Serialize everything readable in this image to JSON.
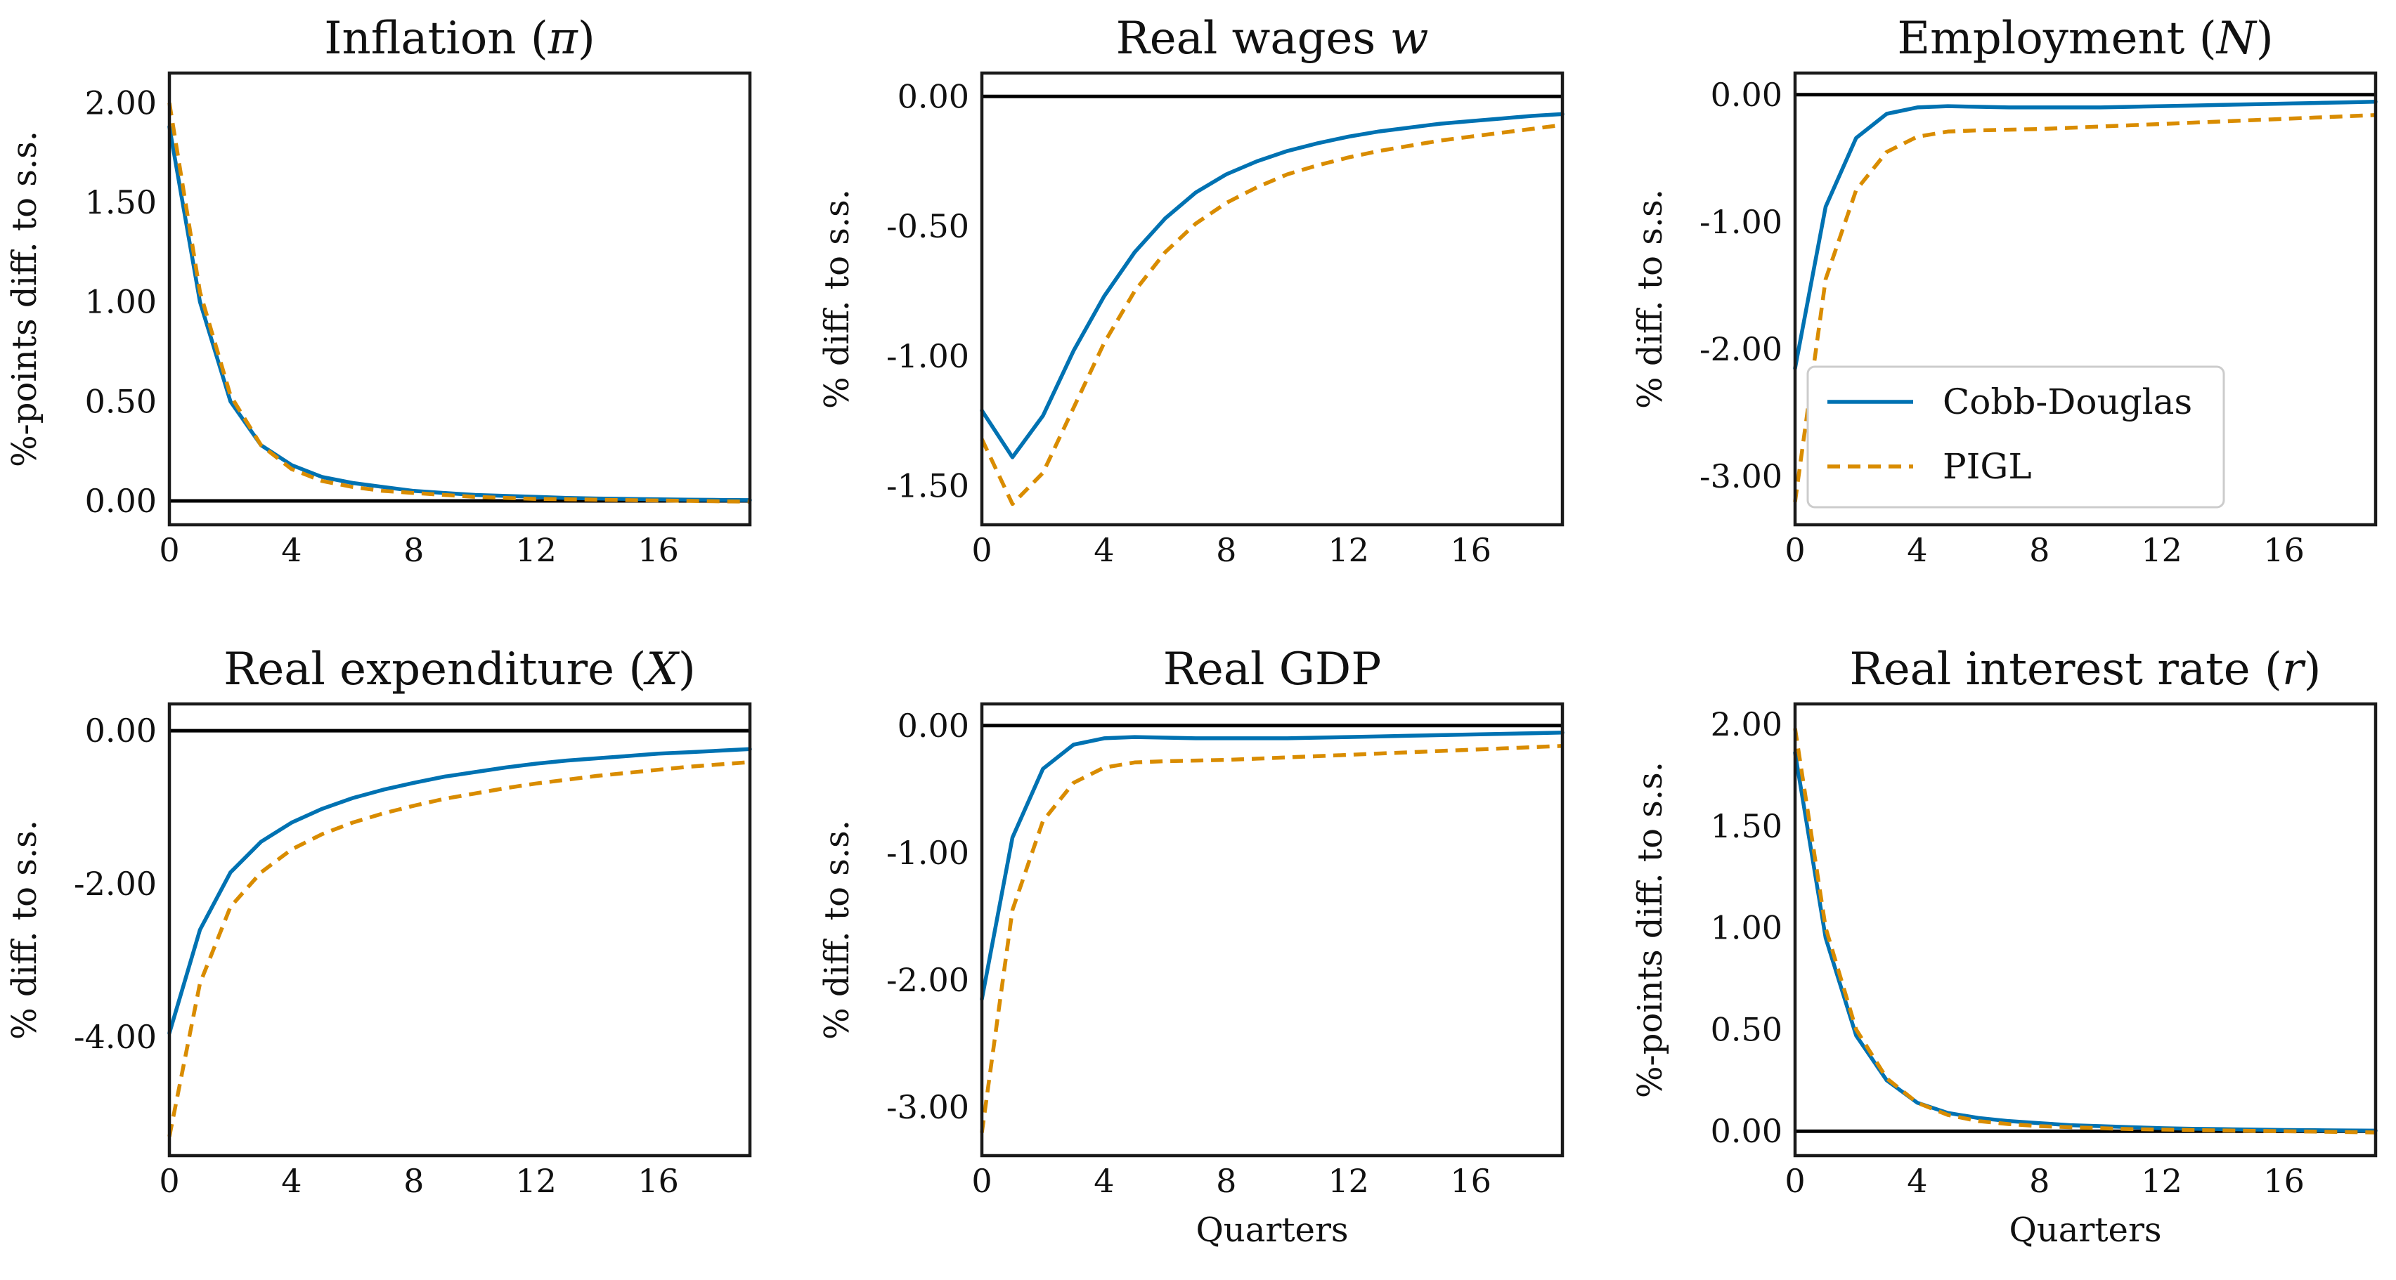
{
  "colors": {
    "cobb": "#0072b2",
    "pigl": "#d98c00",
    "zero": "#000000",
    "frame": "#1a1a1a"
  },
  "legend": {
    "placement": "lower-right",
    "panel": 2,
    "entries": [
      {
        "label": "Cobb-Douglas",
        "style": "solid",
        "color": "#0072b2"
      },
      {
        "label": "PIGL",
        "style": "dashed",
        "color": "#d98c00"
      }
    ]
  },
  "chart_data": [
    {
      "type": "line",
      "title": "Inflation (π)",
      "title_main": "Inflation (",
      "title_sym": "π",
      "title_end": ")",
      "xlabel": "",
      "ylabel": "%-points diff. to s.s.",
      "xlim": [
        0,
        19
      ],
      "ylim": [
        -0.12,
        2.15
      ],
      "xticks": [
        0,
        4,
        8,
        12,
        16
      ],
      "xtick_labels": [
        "0",
        "4",
        "8",
        "12",
        "16"
      ],
      "yticks": [
        0,
        0.5,
        1,
        1.5,
        2
      ],
      "ytick_labels": [
        "0.00",
        "0.50",
        "1.00",
        "1.50",
        "2.00"
      ],
      "x": [
        0,
        1,
        2,
        3,
        4,
        5,
        6,
        7,
        8,
        9,
        10,
        11,
        12,
        13,
        14,
        15,
        16,
        17,
        18,
        19
      ],
      "series": [
        {
          "name": "Cobb-Douglas",
          "values": [
            1.88,
            1.0,
            0.5,
            0.28,
            0.18,
            0.12,
            0.09,
            0.07,
            0.05,
            0.04,
            0.03,
            0.025,
            0.02,
            0.015,
            0.012,
            0.01,
            0.008,
            0.006,
            0.005,
            0.004
          ]
        },
        {
          "name": "PIGL",
          "values": [
            2.0,
            1.05,
            0.53,
            0.28,
            0.16,
            0.1,
            0.07,
            0.05,
            0.04,
            0.03,
            0.02,
            0.015,
            0.01,
            0.008,
            0.006,
            0.004,
            0.002,
            0.0,
            -0.002,
            -0.004
          ]
        }
      ]
    },
    {
      "type": "line",
      "title": "Real wages w",
      "title_main": "Real wages ",
      "title_sym": "w",
      "title_end": "",
      "xlabel": "",
      "ylabel": "% diff. to s.s.",
      "xlim": [
        0,
        19
      ],
      "ylim": [
        -1.65,
        0.09
      ],
      "xticks": [
        0,
        4,
        8,
        12,
        16
      ],
      "xtick_labels": [
        "0",
        "4",
        "8",
        "12",
        "16"
      ],
      "yticks": [
        0,
        -0.5,
        -1,
        -1.5
      ],
      "ytick_labels": [
        "0.00",
        "-0.50",
        "-1.00",
        "-1.50"
      ],
      "x": [
        0,
        1,
        2,
        3,
        4,
        5,
        6,
        7,
        8,
        9,
        10,
        11,
        12,
        13,
        14,
        15,
        16,
        17,
        18,
        19
      ],
      "series": [
        {
          "name": "Cobb-Douglas",
          "values": [
            -1.21,
            -1.39,
            -1.23,
            -0.98,
            -0.77,
            -0.6,
            -0.47,
            -0.37,
            -0.3,
            -0.25,
            -0.21,
            -0.18,
            -0.155,
            -0.135,
            -0.12,
            -0.105,
            -0.095,
            -0.085,
            -0.075,
            -0.068
          ]
        },
        {
          "name": "PIGL",
          "values": [
            -1.32,
            -1.57,
            -1.45,
            -1.2,
            -0.95,
            -0.75,
            -0.6,
            -0.49,
            -0.41,
            -0.35,
            -0.3,
            -0.265,
            -0.235,
            -0.21,
            -0.19,
            -0.17,
            -0.155,
            -0.14,
            -0.125,
            -0.11
          ]
        }
      ]
    },
    {
      "type": "line",
      "title": "Employment (N)",
      "title_main": "Employment (",
      "title_sym": "N",
      "title_end": ")",
      "xlabel": "",
      "ylabel": "% diff. to s.s.",
      "xlim": [
        0,
        19
      ],
      "ylim": [
        -3.38,
        0.17
      ],
      "xticks": [
        0,
        4,
        8,
        12,
        16
      ],
      "xtick_labels": [
        "0",
        "4",
        "8",
        "12",
        "16"
      ],
      "yticks": [
        0,
        -1,
        -2,
        -3
      ],
      "ytick_labels": [
        "0.00",
        "-1.00",
        "-2.00",
        "-3.00"
      ],
      "x": [
        0,
        1,
        2,
        3,
        4,
        5,
        6,
        7,
        8,
        9,
        10,
        11,
        12,
        13,
        14,
        15,
        16,
        17,
        18,
        19
      ],
      "series": [
        {
          "name": "Cobb-Douglas",
          "values": [
            -2.15,
            -0.88,
            -0.34,
            -0.15,
            -0.1,
            -0.09,
            -0.095,
            -0.1,
            -0.1,
            -0.1,
            -0.1,
            -0.095,
            -0.09,
            -0.085,
            -0.08,
            -0.075,
            -0.07,
            -0.065,
            -0.06,
            -0.055
          ]
        },
        {
          "name": "PIGL",
          "values": [
            -3.2,
            -1.45,
            -0.75,
            -0.45,
            -0.33,
            -0.29,
            -0.28,
            -0.275,
            -0.27,
            -0.26,
            -0.25,
            -0.24,
            -0.23,
            -0.22,
            -0.21,
            -0.2,
            -0.19,
            -0.18,
            -0.17,
            -0.16
          ]
        }
      ]
    },
    {
      "type": "line",
      "title": "Real expenditure (X)",
      "title_main": "Real expenditure (",
      "title_sym": "X",
      "title_end": ")",
      "xlabel": "",
      "ylabel": "% diff. to s.s.",
      "xlim": [
        0,
        19
      ],
      "ylim": [
        -5.55,
        0.35
      ],
      "xticks": [
        0,
        4,
        8,
        12,
        16
      ],
      "xtick_labels": [
        "0",
        "4",
        "8",
        "12",
        "16"
      ],
      "yticks": [
        0,
        -2,
        -4
      ],
      "ytick_labels": [
        "0.00",
        "-2.00",
        "-4.00"
      ],
      "x": [
        0,
        1,
        2,
        3,
        4,
        5,
        6,
        7,
        8,
        9,
        10,
        11,
        12,
        13,
        14,
        15,
        16,
        17,
        18,
        19
      ],
      "series": [
        {
          "name": "Cobb-Douglas",
          "values": [
            -3.95,
            -2.6,
            -1.85,
            -1.45,
            -1.2,
            -1.02,
            -0.88,
            -0.77,
            -0.68,
            -0.6,
            -0.54,
            -0.48,
            -0.43,
            -0.39,
            -0.36,
            -0.33,
            -0.3,
            -0.28,
            -0.26,
            -0.24
          ]
        },
        {
          "name": "PIGL",
          "values": [
            -5.3,
            -3.3,
            -2.3,
            -1.85,
            -1.55,
            -1.35,
            -1.2,
            -1.08,
            -0.98,
            -0.89,
            -0.82,
            -0.75,
            -0.69,
            -0.64,
            -0.59,
            -0.55,
            -0.51,
            -0.47,
            -0.44,
            -0.41
          ]
        }
      ]
    },
    {
      "type": "line",
      "title": "Real GDP",
      "title_main": "Real GDP",
      "title_sym": "",
      "title_end": "",
      "xlabel": "Quarters",
      "ylabel": "% diff. to s.s.",
      "xlim": [
        0,
        19
      ],
      "ylim": [
        -3.38,
        0.17
      ],
      "xticks": [
        0,
        4,
        8,
        12,
        16
      ],
      "xtick_labels": [
        "0",
        "4",
        "8",
        "12",
        "16"
      ],
      "yticks": [
        0,
        -1,
        -2,
        -3
      ],
      "ytick_labels": [
        "0.00",
        "-1.00",
        "-2.00",
        "-3.00"
      ],
      "x": [
        0,
        1,
        2,
        3,
        4,
        5,
        6,
        7,
        8,
        9,
        10,
        11,
        12,
        13,
        14,
        15,
        16,
        17,
        18,
        19
      ],
      "series": [
        {
          "name": "Cobb-Douglas",
          "values": [
            -2.15,
            -0.88,
            -0.34,
            -0.15,
            -0.1,
            -0.09,
            -0.095,
            -0.1,
            -0.1,
            -0.1,
            -0.1,
            -0.095,
            -0.09,
            -0.085,
            -0.08,
            -0.075,
            -0.07,
            -0.065,
            -0.06,
            -0.055
          ]
        },
        {
          "name": "PIGL",
          "values": [
            -3.2,
            -1.45,
            -0.75,
            -0.45,
            -0.33,
            -0.29,
            -0.28,
            -0.275,
            -0.27,
            -0.26,
            -0.25,
            -0.24,
            -0.23,
            -0.22,
            -0.21,
            -0.2,
            -0.19,
            -0.18,
            -0.17,
            -0.16
          ]
        }
      ]
    },
    {
      "type": "line",
      "title": "Real interest rate (r)",
      "title_main": "Real interest rate (",
      "title_sym": "r",
      "title_end": ")",
      "xlabel": "Quarters",
      "ylabel": "%-points diff. to s.s.",
      "xlim": [
        0,
        19
      ],
      "ylim": [
        -0.12,
        2.1
      ],
      "xticks": [
        0,
        4,
        8,
        12,
        16
      ],
      "xtick_labels": [
        "0",
        "4",
        "8",
        "12",
        "16"
      ],
      "yticks": [
        0,
        0.5,
        1,
        1.5,
        2
      ],
      "ytick_labels": [
        "0.00",
        "0.50",
        "1.00",
        "1.50",
        "2.00"
      ],
      "x": [
        0,
        1,
        2,
        3,
        4,
        5,
        6,
        7,
        8,
        9,
        10,
        11,
        12,
        13,
        14,
        15,
        16,
        17,
        18,
        19
      ],
      "series": [
        {
          "name": "Cobb-Douglas",
          "values": [
            1.86,
            0.95,
            0.47,
            0.25,
            0.14,
            0.09,
            0.065,
            0.05,
            0.04,
            0.03,
            0.025,
            0.02,
            0.015,
            0.012,
            0.01,
            0.008,
            0.006,
            0.005,
            0.004,
            0.003
          ]
        },
        {
          "name": "PIGL",
          "values": [
            1.98,
            1.0,
            0.5,
            0.26,
            0.14,
            0.08,
            0.05,
            0.035,
            0.025,
            0.02,
            0.015,
            0.01,
            0.008,
            0.006,
            0.004,
            0.002,
            0.0,
            -0.002,
            -0.004,
            -0.006
          ]
        }
      ]
    }
  ]
}
